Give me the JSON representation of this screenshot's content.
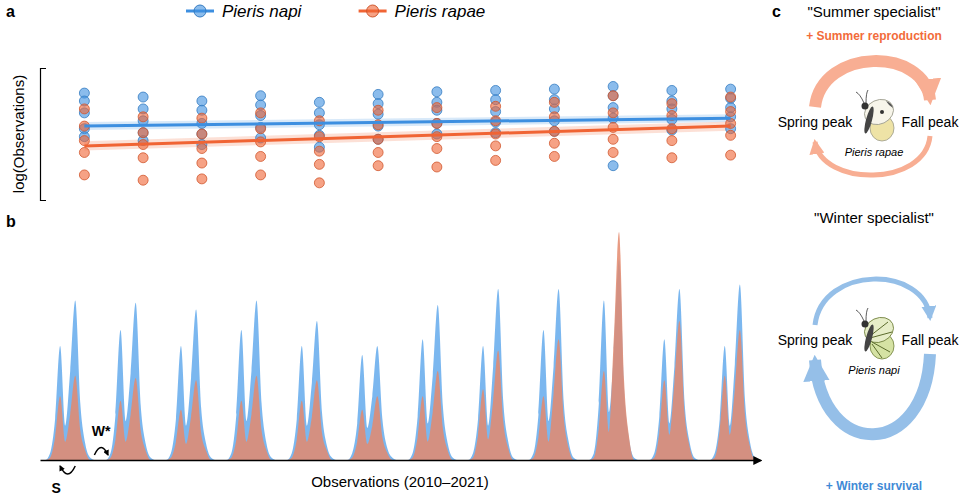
{
  "panels": [
    "a",
    "b",
    "c"
  ],
  "chart_data": [
    {
      "type": "scatter",
      "y_label": "log(Observations)",
      "legend": "top",
      "tick_labels": false,
      "xlim": [
        2009.5,
        2021.5
      ],
      "ylim": [
        0,
        10
      ],
      "x": [
        2010,
        2010,
        2010,
        2010,
        2010,
        2011,
        2011,
        2011,
        2011,
        2011,
        2012,
        2012,
        2012,
        2012,
        2012,
        2013,
        2013,
        2013,
        2013,
        2013,
        2014,
        2014,
        2014,
        2014,
        2014,
        2015,
        2015,
        2015,
        2015,
        2015,
        2016,
        2016,
        2016,
        2016,
        2016,
        2017,
        2017,
        2017,
        2017,
        2017,
        2018,
        2018,
        2018,
        2018,
        2018,
        2019,
        2019,
        2019,
        2019,
        2019,
        2020,
        2020,
        2020,
        2020,
        2020,
        2021,
        2021,
        2021,
        2021,
        2021
      ],
      "series": [
        {
          "name": "Pieris napi",
          "color": "#3d8fe0",
          "marker": "circle",
          "values": [
            8.1,
            7.5,
            6.6,
            5.4,
            4.8,
            7.8,
            6.9,
            6.0,
            5.1,
            4.5,
            7.5,
            6.8,
            5.8,
            5.0,
            4.2,
            7.9,
            7.2,
            6.4,
            5.5,
            4.7,
            7.4,
            6.6,
            5.7,
            4.9,
            4.0,
            8.0,
            7.3,
            6.5,
            5.6,
            4.6,
            8.2,
            7.4,
            6.8,
            5.8,
            5.0,
            8.3,
            7.6,
            6.7,
            5.9,
            5.1,
            8.4,
            7.6,
            6.9,
            6.0,
            5.2,
            8.6,
            7.9,
            7.0,
            6.2,
            2.6,
            8.3,
            7.5,
            6.9,
            6.1,
            5.3,
            8.4,
            7.7,
            7.0,
            6.3,
            5.4
          ],
          "fit": {
            "x": [
              2010,
              2021
            ],
            "values": [
              5.6,
              6.2
            ],
            "lower": [
              5.3,
              5.9
            ],
            "upper": [
              5.9,
              6.5
            ]
          }
        },
        {
          "name": "Pieris rapae",
          "color": "#f06434",
          "marker": "circle",
          "values": [
            6.9,
            5.6,
            4.5,
            3.6,
            1.9,
            6.3,
            5.1,
            4.2,
            3.2,
            1.5,
            6.2,
            5.0,
            3.9,
            2.8,
            1.6,
            6.6,
            5.4,
            4.4,
            3.3,
            1.9,
            6.0,
            4.8,
            3.7,
            2.7,
            1.3,
            6.8,
            5.7,
            4.6,
            3.6,
            2.6,
            7.0,
            5.8,
            4.8,
            3.9,
            2.5,
            7.1,
            6.0,
            5.0,
            4.1,
            3.0,
            7.4,
            6.3,
            5.2,
            4.3,
            3.3,
            7.9,
            6.6,
            5.5,
            4.6,
            3.6,
            7.3,
            6.4,
            5.4,
            4.5,
            3.2,
            7.8,
            6.7,
            5.8,
            4.9,
            3.4
          ],
          "fit": {
            "x": [
              2010,
              2021
            ],
            "values": [
              4.1,
              5.6
            ],
            "lower": [
              3.75,
              5.25
            ],
            "upper": [
              4.45,
              5.95
            ]
          }
        }
      ]
    },
    {
      "type": "area",
      "x_label": "Observations (2010–2021)",
      "tick_labels": false,
      "xlim": [
        0,
        143
      ],
      "ylim": [
        0,
        100
      ],
      "annotations": [
        {
          "text": "S"
        },
        {
          "text": "W*"
        }
      ],
      "x": [
        0,
        1,
        2,
        3,
        4,
        5,
        6,
        7,
        8,
        9,
        10,
        11,
        12,
        13,
        14,
        15,
        16,
        17,
        18,
        19,
        20,
        21,
        22,
        23,
        24,
        25,
        26,
        27,
        28,
        29,
        30,
        31,
        32,
        33,
        34,
        35,
        36,
        37,
        38,
        39,
        40,
        41,
        42,
        43,
        44,
        45,
        46,
        47,
        48,
        49,
        50,
        51,
        52,
        53,
        54,
        55,
        56,
        57,
        58,
        59,
        60,
        61,
        62,
        63,
        64,
        65,
        66,
        67,
        68,
        69,
        70,
        71,
        72,
        73,
        74,
        75,
        76,
        77,
        78,
        79,
        80,
        81,
        82,
        83,
        84,
        85,
        86,
        87,
        88,
        89,
        90,
        91,
        92,
        93,
        94,
        95,
        96,
        97,
        98,
        99,
        100,
        101,
        102,
        103,
        104,
        105,
        106,
        107,
        108,
        109,
        110,
        111,
        112,
        113,
        114,
        115,
        116,
        117,
        118,
        119,
        120,
        121,
        122,
        123,
        124,
        125,
        126,
        127,
        128,
        129,
        130,
        131,
        132,
        133,
        134,
        135,
        136,
        137,
        138,
        139,
        140,
        141,
        142,
        143
      ],
      "series": [
        {
          "color": "#74b3ee",
          "values": [
            0,
            0,
            3,
            18,
            50,
            15,
            39,
            70,
            25,
            7,
            1,
            0,
            0,
            0,
            3,
            20,
            57,
            17,
            38,
            69,
            24,
            7,
            1,
            0,
            0,
            0,
            3,
            18,
            50,
            15,
            36,
            66,
            23,
            7,
            1,
            0,
            0,
            0,
            3,
            20,
            57,
            17,
            39,
            70,
            25,
            7,
            1,
            0,
            0,
            0,
            3,
            18,
            50,
            15,
            34,
            61,
            21,
            6,
            1,
            0,
            0,
            0,
            3,
            16,
            46,
            14,
            28,
            50,
            18,
            5,
            1,
            0,
            0,
            0,
            3,
            19,
            53,
            16,
            37,
            68,
            24,
            7,
            1,
            0,
            0,
            0,
            3,
            18,
            50,
            15,
            41,
            75,
            26,
            8,
            1,
            0,
            0,
            0,
            3,
            20,
            57,
            17,
            41,
            75,
            26,
            8,
            1,
            0,
            0,
            0,
            3,
            25,
            70,
            21,
            48,
            88,
            31,
            9,
            1,
            0,
            0,
            0,
            3,
            19,
            53,
            16,
            41,
            75,
            26,
            8,
            1,
            0,
            0,
            0,
            3,
            18,
            50,
            15,
            42,
            77,
            27,
            8,
            1,
            0
          ]
        },
        {
          "color": "#e4896d",
          "values": [
            0,
            0,
            1,
            10,
            28,
            8,
            20,
            37,
            13,
            4,
            0,
            0,
            0,
            0,
            1,
            9,
            26,
            8,
            20,
            36,
            13,
            4,
            0,
            0,
            0,
            0,
            1,
            8,
            22,
            7,
            19,
            35,
            12,
            4,
            0,
            0,
            0,
            0,
            1,
            9,
            26,
            8,
            20,
            37,
            13,
            4,
            0,
            0,
            0,
            0,
            1,
            9,
            26,
            8,
            19,
            35,
            12,
            4,
            0,
            0,
            0,
            0,
            1,
            8,
            22,
            7,
            15,
            28,
            10,
            3,
            0,
            0,
            0,
            0,
            1,
            10,
            28,
            8,
            21,
            39,
            14,
            4,
            0,
            0,
            0,
            0,
            1,
            11,
            31,
            9,
            26,
            48,
            17,
            5,
            0,
            0,
            0,
            0,
            1,
            10,
            28,
            8,
            29,
            53,
            19,
            5,
            0,
            0,
            0,
            0,
            1,
            14,
            39,
            12,
            55,
            100,
            35,
            10,
            0,
            0,
            0,
            0,
            1,
            12,
            35,
            11,
            34,
            61,
            21,
            6,
            0,
            0,
            0,
            0,
            1,
            13,
            37,
            11,
            31,
            57,
            20,
            6,
            0,
            0
          ]
        }
      ]
    }
  ],
  "diagram": {
    "cycles": [
      {
        "title": "\"Summer specialist\"",
        "effect": "+ Summer reproduction",
        "left": "Spring peak",
        "right": "Fall peak",
        "species": "Pieris rapae",
        "color": "#f26b3a"
      },
      {
        "title": "\"Winter specialist\"",
        "effect": "+ Winter survival",
        "left": "Spring peak",
        "right": "Fall peak",
        "species": "Pieris napi",
        "color": "#3f8ad6"
      }
    ]
  }
}
